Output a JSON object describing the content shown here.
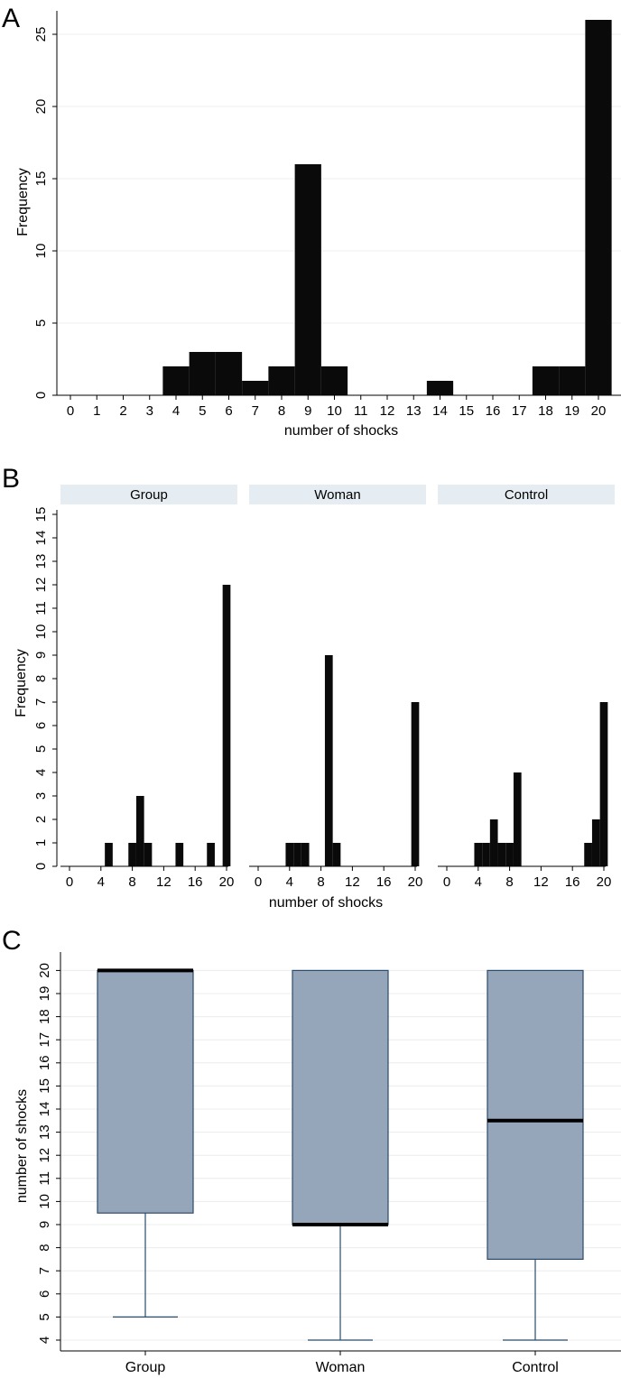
{
  "chart_data": [
    {
      "panel": "A",
      "type": "bar",
      "title": "",
      "xlabel": "number of shocks",
      "ylabel": "Frequency",
      "x": [
        0,
        1,
        2,
        3,
        4,
        5,
        6,
        7,
        8,
        9,
        10,
        11,
        12,
        13,
        14,
        15,
        16,
        17,
        18,
        19,
        20
      ],
      "values": [
        0,
        0,
        0,
        0,
        2,
        3,
        3,
        1,
        2,
        16,
        2,
        0,
        0,
        0,
        1,
        0,
        0,
        0,
        2,
        2,
        26
      ],
      "xticks": [
        "0",
        "1",
        "2",
        "3",
        "4",
        "5",
        "6",
        "7",
        "8",
        "9",
        "10",
        "11",
        "12",
        "13",
        "14",
        "15",
        "16",
        "17",
        "18",
        "19",
        "20"
      ],
      "yticks": [
        "0",
        "5",
        "10",
        "15",
        "20",
        "25"
      ],
      "ylim": [
        0,
        26
      ]
    },
    {
      "panel": "B",
      "type": "bar",
      "xlabel": "number of shocks",
      "ylabel": "Frequency",
      "ylim": [
        0,
        15
      ],
      "yticks": [
        "0",
        "1",
        "2",
        "3",
        "4",
        "5",
        "6",
        "7",
        "8",
        "9",
        "10",
        "11",
        "12",
        "13",
        "14",
        "15"
      ],
      "xticks": [
        "0",
        "4",
        "8",
        "12",
        "16",
        "20"
      ],
      "facets": [
        {
          "name": "Group",
          "x": [
            5,
            8,
            9,
            10,
            14,
            18,
            20
          ],
          "values": [
            1,
            1,
            3,
            1,
            1,
            1,
            12
          ]
        },
        {
          "name": "Woman",
          "x": [
            4,
            5,
            6,
            9,
            10,
            20
          ],
          "values": [
            1,
            1,
            1,
            9,
            1,
            7
          ]
        },
        {
          "name": "Control",
          "x": [
            4,
            5,
            6,
            7,
            8,
            9,
            18,
            19,
            20
          ],
          "values": [
            1,
            1,
            2,
            1,
            1,
            4,
            1,
            2,
            7
          ]
        }
      ]
    },
    {
      "panel": "C",
      "type": "box",
      "xlabel": "",
      "ylabel": "number of shocks",
      "ylim": [
        4,
        20
      ],
      "yticks": [
        "4",
        "5",
        "6",
        "7",
        "8",
        "9",
        "10",
        "11",
        "12",
        "13",
        "14",
        "15",
        "16",
        "17",
        "18",
        "19",
        "20"
      ],
      "boxes": [
        {
          "name": "Group",
          "min": 5,
          "q1": 9.5,
          "median": 20,
          "q3": 20,
          "max": 20
        },
        {
          "name": "Woman",
          "min": 4,
          "q1": 9,
          "median": 9,
          "q3": 20,
          "max": 20
        },
        {
          "name": "Control",
          "min": 4,
          "q1": 7.5,
          "median": 13.5,
          "q3": 20,
          "max": 20
        }
      ]
    }
  ],
  "colors": {
    "bar": "#0a0a0a",
    "box_fill": "#95a6ba",
    "box_stroke": "#2b4b6b",
    "strip": "#e5edf2"
  }
}
